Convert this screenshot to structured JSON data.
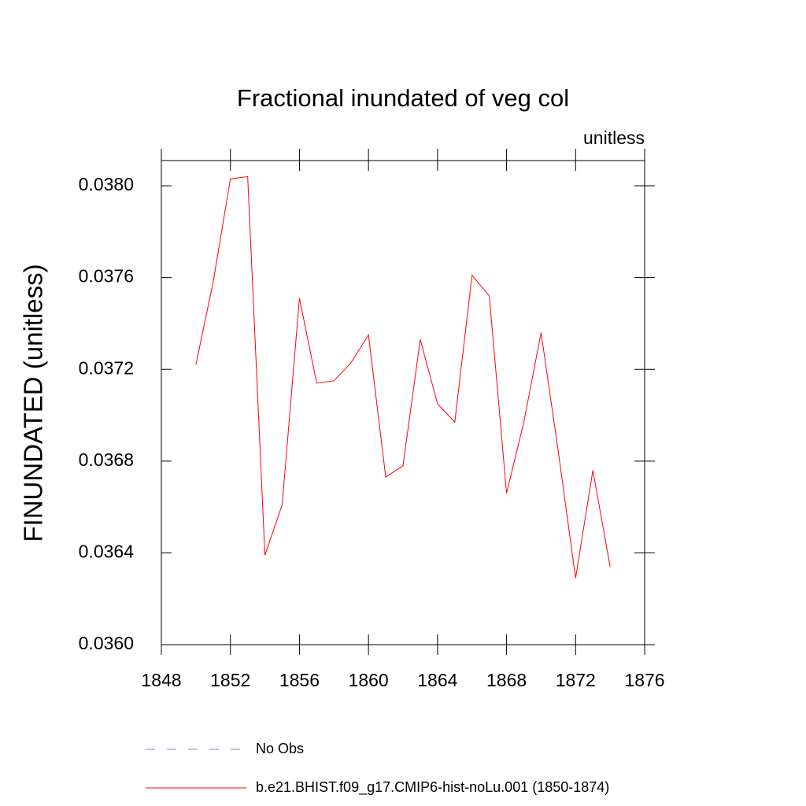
{
  "chart_data": {
    "type": "line",
    "title": "Fractional inundated of veg col",
    "subtitle": "unitless",
    "y_label": "FINUNDATED  (unitless)",
    "x": [
      1850,
      1851,
      1852,
      1853,
      1854,
      1855,
      1856,
      1857,
      1858,
      1859,
      1860,
      1861,
      1862,
      1863,
      1864,
      1865,
      1866,
      1867,
      1868,
      1869,
      1870,
      1871,
      1872,
      1873,
      1874
    ],
    "series": [
      {
        "name": "b.e21.BHIST.f09_g17.CMIP6-hist-noLu.001 (1850-1874)",
        "color": "#ff0000",
        "values": [
          0.03722,
          0.03758,
          0.03803,
          0.03804,
          0.03639,
          0.03661,
          0.03751,
          0.03714,
          0.03715,
          0.03723,
          0.03735,
          0.03673,
          0.03678,
          0.03733,
          0.03705,
          0.03697,
          0.03761,
          0.03752,
          0.03666,
          0.03697,
          0.03736,
          0.03684,
          0.03629,
          0.03676,
          0.03634
        ]
      }
    ],
    "legend_extra": [
      {
        "name": "No Obs",
        "color": "#8080d0",
        "dash": "dashed"
      }
    ],
    "xlim": [
      1848,
      1876
    ],
    "xticks": [
      1848,
      1852,
      1856,
      1860,
      1864,
      1868,
      1872,
      1876
    ],
    "ylim": [
      0.036,
      0.03811
    ],
    "yticks": [
      {
        "value": 0.036,
        "label": "0.0360"
      },
      {
        "value": 0.0364,
        "label": "0.0364"
      },
      {
        "value": 0.0368,
        "label": "0.0368"
      },
      {
        "value": 0.0372,
        "label": "0.0372"
      },
      {
        "value": 0.0376,
        "label": "0.0376"
      },
      {
        "value": 0.038,
        "label": "0.0380"
      }
    ]
  }
}
